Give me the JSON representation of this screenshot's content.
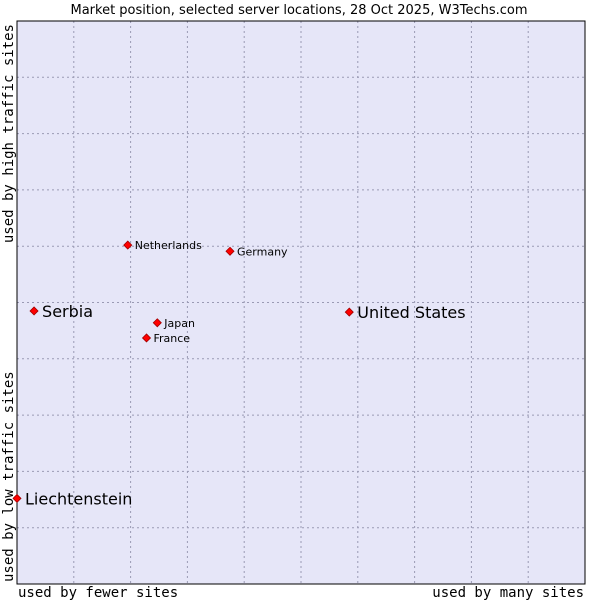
{
  "chart_data": {
    "type": "scatter",
    "title": "Market position, selected server locations, 28 Oct 2025, W3Techs.com",
    "xlabel_left": "used by fewer sites",
    "xlabel_right": "used by many sites",
    "ylabel_bottom": "used by low traffic sites",
    "ylabel_top": "used by high traffic sites",
    "xlim": [
      0,
      100
    ],
    "ylim": [
      0,
      100
    ],
    "grid": true,
    "points": [
      {
        "label": "Netherlands",
        "x": 19.5,
        "y": 60.2,
        "emphasis": "small"
      },
      {
        "label": "Germany",
        "x": 37.5,
        "y": 59.1,
        "emphasis": "small"
      },
      {
        "label": "Serbia",
        "x": 3.0,
        "y": 48.5,
        "emphasis": "large"
      },
      {
        "label": "United States",
        "x": 58.5,
        "y": 48.3,
        "emphasis": "large"
      },
      {
        "label": "Japan",
        "x": 24.7,
        "y": 46.4,
        "emphasis": "small"
      },
      {
        "label": "France",
        "x": 22.8,
        "y": 43.7,
        "emphasis": "small"
      },
      {
        "label": "Liechtenstein",
        "x": 0.0,
        "y": 15.2,
        "emphasis": "large"
      }
    ]
  },
  "colors": {
    "plot_background": "#e6e6f8",
    "grid": "#9a9ab4",
    "border": "#000000",
    "marker": "#ff0000",
    "marker_edge": "#a00000"
  }
}
